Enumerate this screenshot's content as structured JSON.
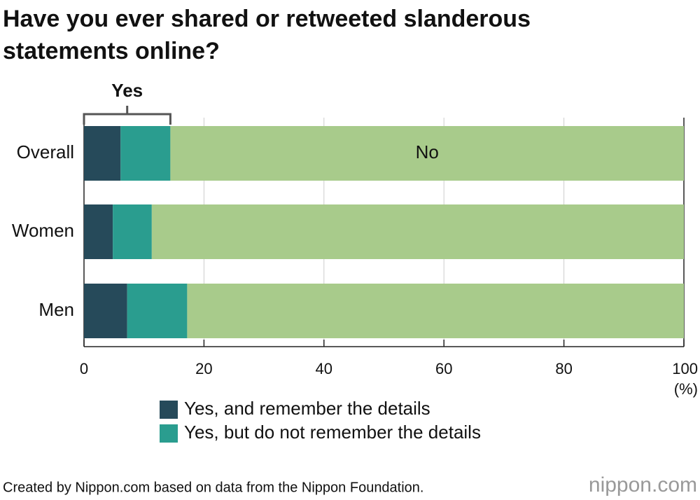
{
  "chart_data": {
    "type": "stacked-barh",
    "title": "Have you ever shared or retweeted slanderous statements online?",
    "categories": [
      "Overall",
      "Women",
      "Men"
    ],
    "series": [
      {
        "name": "Yes, and remember the details",
        "color": "#264a5a",
        "values": [
          6.1,
          4.8,
          7.2
        ]
      },
      {
        "name": "Yes, but do not remember the details",
        "color": "#2a9d8f",
        "values": [
          8.3,
          6.5,
          10.0
        ]
      },
      {
        "name": "No",
        "color": "#a8cb8b",
        "values": [
          85.6,
          88.7,
          82.8
        ]
      }
    ],
    "bracket_label": "Yes",
    "xlim": [
      0,
      100
    ],
    "xticks": [
      0,
      20,
      40,
      60,
      80,
      100
    ],
    "unit_label": "(%)",
    "grid": true,
    "source": "Created by Nippon.com based on data from the Nippon Foundation.",
    "logo": "nippon.com"
  }
}
